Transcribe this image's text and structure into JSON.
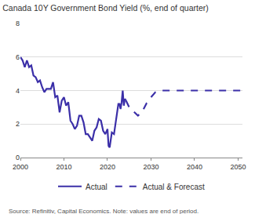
{
  "chart_data": {
    "type": "line",
    "title": "Canada 10Y Government Bond Yield (%, end of quarter)",
    "source": "Source: Refinitiv, Capital Economics. Note: values are end of period.",
    "xlim": [
      2000,
      2051
    ],
    "xticks": [
      2000,
      2010,
      2020,
      2030,
      2040,
      2050
    ],
    "ylim": [
      0,
      8
    ],
    "yticks": [
      0,
      2,
      4,
      6,
      8
    ],
    "grid": true,
    "legend": "bottom",
    "series": [
      {
        "name": "Actual",
        "color": "#3b2fa8",
        "line_style": "solid",
        "x": [
          2000,
          2000.5,
          2001,
          2001.5,
          2002,
          2002.5,
          2003,
          2003.5,
          2004,
          2004.5,
          2005,
          2005.5,
          2006,
          2006.5,
          2007,
          2007.5,
          2008,
          2008.5,
          2009,
          2009.5,
          2010,
          2010.5,
          2011,
          2011.5,
          2012,
          2012.5,
          2013,
          2013.5,
          2014,
          2014.5,
          2015,
          2015.5,
          2016,
          2016.5,
          2017,
          2017.5,
          2018,
          2018.5,
          2019,
          2019.5,
          2020,
          2020.25,
          2020.5,
          2021,
          2021.5,
          2022,
          2022.5,
          2022.75,
          2023,
          2023.25,
          2023.5,
          2023.75,
          2024,
          2024.25
        ],
        "values": [
          6.0,
          5.8,
          5.4,
          5.8,
          5.4,
          5.5,
          4.9,
          4.8,
          4.5,
          4.6,
          4.2,
          3.9,
          4.1,
          4.1,
          4.1,
          4.5,
          3.6,
          3.7,
          2.7,
          3.4,
          3.6,
          3.1,
          3.3,
          2.2,
          2.0,
          1.7,
          1.9,
          2.5,
          2.5,
          2.1,
          1.4,
          1.4,
          1.2,
          1.0,
          1.6,
          1.8,
          2.3,
          2.2,
          1.6,
          1.4,
          1.7,
          0.7,
          0.6,
          1.5,
          1.4,
          2.4,
          3.2,
          3.2,
          2.9,
          3.3,
          4.0,
          3.1,
          3.5,
          3.4
        ]
      },
      {
        "name": "Actual & Forecast",
        "color": "#3b2fa8",
        "line_style": "dash",
        "x": [
          2024.25,
          2025,
          2026,
          2027,
          2028,
          2029,
          2030,
          2031,
          2032,
          2040,
          2051
        ],
        "values": [
          3.4,
          3.0,
          2.75,
          2.5,
          2.75,
          3.25,
          3.6,
          3.9,
          4.0,
          4.0,
          4.0
        ]
      }
    ]
  }
}
